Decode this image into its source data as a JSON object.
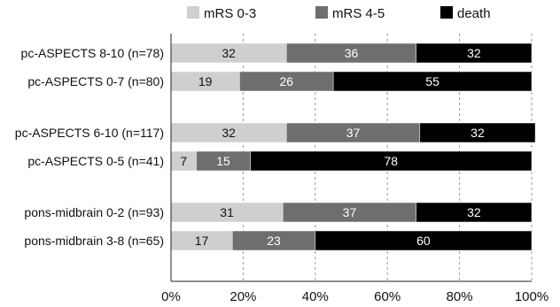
{
  "chart_data": {
    "type": "bar",
    "orientation": "horizontal",
    "stacked": true,
    "percent": true,
    "categories": [
      "pc-ASPECTS 8-10 (n=78)",
      "pc-ASPECTS 0-7 (n=80)",
      "pc-ASPECTS 6-10 (n=117)",
      "pc-ASPECTS 0-5 (n=41)",
      "pons-midbrain 0-2 (n=93)",
      "pons-midbrain 3-8 (n=65)"
    ],
    "series": [
      {
        "name": "mRS 0-3",
        "values": [
          32,
          19,
          32,
          7,
          31,
          17
        ],
        "color": "#cfcfcf"
      },
      {
        "name": "mRS 4-5",
        "values": [
          36,
          26,
          37,
          15,
          37,
          23
        ],
        "color": "#6e6e6e"
      },
      {
        "name": "death",
        "values": [
          32,
          55,
          32,
          78,
          32,
          60
        ],
        "color": "#000000"
      }
    ],
    "x_ticks": [
      "0%",
      "20%",
      "40%",
      "60%",
      "80%",
      "100%"
    ],
    "xlim": [
      0,
      100
    ],
    "grid": "vertical dashed",
    "legend": "top"
  }
}
